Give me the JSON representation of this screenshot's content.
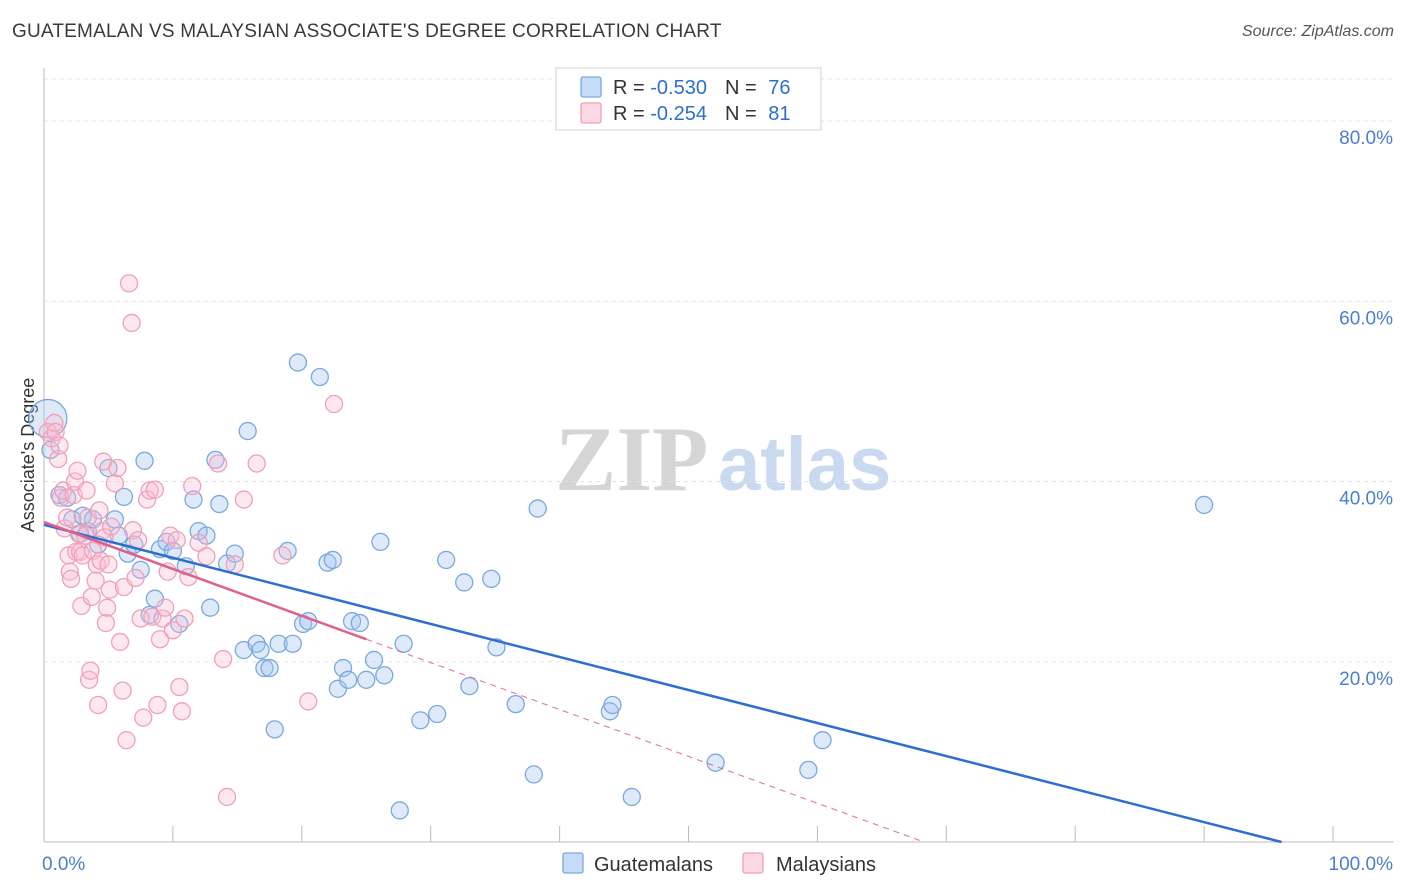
{
  "chart_data": {
    "type": "scatter",
    "title": "GUATEMALAN VS MALAYSIAN ASSOCIATE'S DEGREE CORRELATION CHART",
    "source": "Source: ZipAtlas.com",
    "xlabel": "",
    "ylabel": "Associate's Degree",
    "xlim": [
      0,
      100
    ],
    "ylim": [
      0,
      85
    ],
    "x_tick_labels": [
      "0.0%",
      "100.0%"
    ],
    "y_ticks": [
      20,
      40,
      60,
      80
    ],
    "y_tick_labels": [
      "20.0%",
      "40.0%",
      "60.0%",
      "80.0%"
    ],
    "legend_position": "top-center",
    "watermark": {
      "zip": "ZIP",
      "atlas": "atlas"
    },
    "series": [
      {
        "name": "Guatemalans",
        "color": "#7aa8e0",
        "fill": "rgba(160,196,240,0.35)",
        "line_color": "#2d6fd0",
        "R": "-0.530",
        "N": "76",
        "trend": {
          "x0": 0,
          "y0": 35.2,
          "x1": 96,
          "y1": 0
        },
        "points": [
          [
            0.3,
            47.0
          ],
          [
            0.5,
            43.5
          ],
          [
            1.2,
            38.5
          ],
          [
            1.8,
            38.2
          ],
          [
            2.2,
            35.8
          ],
          [
            2.8,
            34.2
          ],
          [
            3.0,
            36.2
          ],
          [
            3.4,
            34.5
          ],
          [
            3.8,
            35.8
          ],
          [
            4.2,
            33.0
          ],
          [
            5.0,
            41.5
          ],
          [
            5.5,
            35.8
          ],
          [
            5.8,
            34.0
          ],
          [
            6.2,
            38.3
          ],
          [
            6.5,
            32.0
          ],
          [
            7.0,
            33.0
          ],
          [
            7.5,
            30.2
          ],
          [
            7.8,
            42.3
          ],
          [
            8.2,
            25.2
          ],
          [
            8.6,
            27.0
          ],
          [
            9.0,
            32.5
          ],
          [
            9.5,
            33.3
          ],
          [
            10.0,
            32.3
          ],
          [
            10.5,
            24.2
          ],
          [
            11.0,
            30.6
          ],
          [
            11.6,
            38.0
          ],
          [
            12.0,
            34.5
          ],
          [
            12.6,
            34.0
          ],
          [
            12.9,
            26.0
          ],
          [
            13.3,
            42.4
          ],
          [
            13.6,
            37.5
          ],
          [
            14.2,
            30.9
          ],
          [
            14.8,
            32.0
          ],
          [
            15.5,
            21.3
          ],
          [
            15.8,
            45.6
          ],
          [
            16.5,
            22.0
          ],
          [
            16.8,
            21.3
          ],
          [
            17.1,
            19.3
          ],
          [
            17.5,
            19.3
          ],
          [
            17.9,
            12.5
          ],
          [
            18.2,
            22.0
          ],
          [
            18.9,
            32.3
          ],
          [
            19.3,
            22.0
          ],
          [
            19.7,
            53.2
          ],
          [
            20.1,
            24.2
          ],
          [
            20.5,
            24.5
          ],
          [
            21.4,
            51.6
          ],
          [
            22.0,
            31.0
          ],
          [
            22.4,
            31.3
          ],
          [
            22.8,
            17.0
          ],
          [
            23.2,
            19.3
          ],
          [
            23.6,
            18.0
          ],
          [
            23.9,
            24.5
          ],
          [
            24.5,
            24.3
          ],
          [
            25.0,
            18.0
          ],
          [
            25.6,
            20.2
          ],
          [
            26.1,
            33.3
          ],
          [
            26.4,
            18.5
          ],
          [
            27.6,
            3.5
          ],
          [
            27.9,
            22.0
          ],
          [
            29.2,
            13.5
          ],
          [
            30.5,
            14.2
          ],
          [
            31.2,
            31.3
          ],
          [
            32.6,
            28.8
          ],
          [
            33.0,
            17.3
          ],
          [
            34.7,
            29.2
          ],
          [
            35.1,
            21.6
          ],
          [
            36.6,
            15.3
          ],
          [
            38.0,
            7.5
          ],
          [
            38.3,
            37.0
          ],
          [
            43.9,
            14.5
          ],
          [
            44.1,
            15.2
          ],
          [
            45.6,
            5.0
          ],
          [
            52.1,
            8.8
          ],
          [
            59.3,
            8.0
          ],
          [
            60.4,
            11.3
          ],
          [
            90.0,
            37.4
          ]
        ]
      },
      {
        "name": "Malaysians",
        "color": "#f0a0b8",
        "fill": "rgba(248,190,210,0.35)",
        "line_color": "#e0608a",
        "R": "-0.254",
        "N": "81",
        "trend": {
          "x0": 0,
          "y0": 35.5,
          "x1": 25,
          "y1": 22.5
        },
        "trend_ext": {
          "x0": 25,
          "y0": 22.5,
          "x1": 100,
          "y1": -16.5
        },
        "points": [
          [
            0.3,
            45.5
          ],
          [
            0.6,
            44.8
          ],
          [
            0.8,
            46.5
          ],
          [
            0.9,
            45.5
          ],
          [
            1.1,
            42.5
          ],
          [
            1.2,
            44.0
          ],
          [
            1.3,
            38.2
          ],
          [
            1.5,
            39.0
          ],
          [
            1.6,
            34.8
          ],
          [
            1.8,
            36.0
          ],
          [
            1.9,
            31.8
          ],
          [
            2.0,
            30.0
          ],
          [
            2.1,
            29.2
          ],
          [
            2.3,
            38.5
          ],
          [
            2.4,
            40.0
          ],
          [
            2.5,
            32.2
          ],
          [
            2.6,
            41.2
          ],
          [
            2.7,
            34.2
          ],
          [
            2.8,
            32.2
          ],
          [
            2.9,
            26.2
          ],
          [
            3.0,
            31.8
          ],
          [
            3.2,
            34.0
          ],
          [
            3.3,
            39.0
          ],
          [
            3.4,
            36.0
          ],
          [
            3.5,
            18.0
          ],
          [
            3.6,
            19.0
          ],
          [
            3.7,
            27.2
          ],
          [
            3.8,
            32.3
          ],
          [
            4.0,
            29.0
          ],
          [
            4.1,
            30.8
          ],
          [
            4.2,
            15.2
          ],
          [
            4.3,
            36.8
          ],
          [
            4.4,
            31.2
          ],
          [
            4.5,
            34.5
          ],
          [
            4.6,
            42.2
          ],
          [
            4.7,
            33.8
          ],
          [
            4.8,
            24.3
          ],
          [
            4.9,
            26.0
          ],
          [
            5.0,
            30.8
          ],
          [
            5.1,
            28.0
          ],
          [
            5.2,
            35.0
          ],
          [
            5.5,
            39.8
          ],
          [
            5.7,
            41.5
          ],
          [
            5.9,
            22.2
          ],
          [
            6.1,
            16.8
          ],
          [
            6.2,
            28.3
          ],
          [
            6.4,
            11.3
          ],
          [
            6.6,
            62.0
          ],
          [
            6.8,
            57.6
          ],
          [
            6.9,
            34.6
          ],
          [
            7.1,
            29.3
          ],
          [
            7.3,
            33.5
          ],
          [
            7.5,
            24.8
          ],
          [
            7.7,
            13.8
          ],
          [
            8.0,
            38.0
          ],
          [
            8.2,
            39.0
          ],
          [
            8.4,
            25.0
          ],
          [
            8.6,
            39.1
          ],
          [
            8.8,
            15.2
          ],
          [
            9.0,
            22.5
          ],
          [
            9.2,
            24.8
          ],
          [
            9.4,
            26.0
          ],
          [
            9.6,
            30.0
          ],
          [
            9.8,
            34.0
          ],
          [
            10.0,
            23.5
          ],
          [
            10.3,
            33.5
          ],
          [
            10.5,
            17.2
          ],
          [
            10.7,
            14.5
          ],
          [
            10.9,
            24.8
          ],
          [
            11.2,
            29.4
          ],
          [
            11.5,
            39.5
          ],
          [
            12.0,
            33.2
          ],
          [
            12.6,
            31.7
          ],
          [
            13.5,
            42.0
          ],
          [
            13.9,
            20.3
          ],
          [
            14.2,
            5.0
          ],
          [
            14.8,
            30.8
          ],
          [
            15.5,
            38.0
          ],
          [
            16.5,
            42.0
          ],
          [
            18.5,
            31.8
          ],
          [
            20.5,
            15.6
          ],
          [
            22.5,
            48.6
          ]
        ]
      }
    ]
  }
}
